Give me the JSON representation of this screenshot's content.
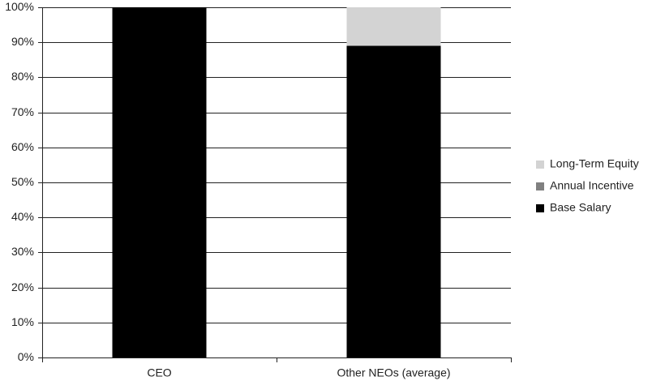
{
  "chart_data": {
    "type": "stacked_bar",
    "categories": [
      "CEO",
      "Other NEOs (average)"
    ],
    "series": [
      {
        "name": "Base Salary",
        "color": "#000000",
        "values": [
          100,
          89
        ]
      },
      {
        "name": "Annual Incentive",
        "color": "#808080",
        "values": [
          0,
          0
        ]
      },
      {
        "name": "Long-Term Equity",
        "color": "#d3d3d3",
        "values": [
          0,
          11
        ]
      }
    ],
    "ylim": [
      0,
      100
    ],
    "yticks": [
      {
        "value": 0,
        "label": "0%"
      },
      {
        "value": 10,
        "label": "10%"
      },
      {
        "value": 20,
        "label": "20%"
      },
      {
        "value": 30,
        "label": "30%"
      },
      {
        "value": 40,
        "label": "40%"
      },
      {
        "value": 50,
        "label": "50%"
      },
      {
        "value": 60,
        "label": "60%"
      },
      {
        "value": 70,
        "label": "70%"
      },
      {
        "value": 80,
        "label": "80%"
      },
      {
        "value": 90,
        "label": "90%"
      },
      {
        "value": 100,
        "label": "100%"
      }
    ],
    "grid": true,
    "legend": "right"
  }
}
